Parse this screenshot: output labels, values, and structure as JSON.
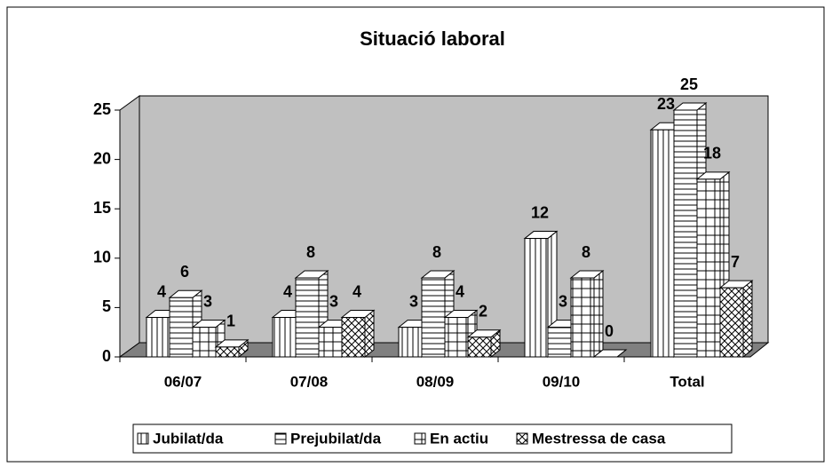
{
  "chart_data": {
    "type": "bar3d",
    "title": "Situació laboral",
    "categories": [
      "06/07",
      "07/08",
      "08/09",
      "09/10",
      "Total"
    ],
    "series": [
      {
        "name": "Jubilat/da",
        "color": "vertical",
        "values": [
          4,
          4,
          3,
          12,
          23
        ]
      },
      {
        "name": "Prejubilat/da",
        "color": "horizontal",
        "values": [
          6,
          8,
          8,
          3,
          25
        ]
      },
      {
        "name": "En actiu",
        "color": "grid",
        "values": [
          3,
          3,
          4,
          8,
          18
        ]
      },
      {
        "name": "Mestressa de casa",
        "color": "cross",
        "values": [
          1,
          4,
          2,
          0,
          7
        ]
      }
    ],
    "ylim": [
      0,
      25
    ],
    "yticks": [
      0,
      5,
      10,
      15,
      20,
      25
    ],
    "legend": "bottom"
  }
}
